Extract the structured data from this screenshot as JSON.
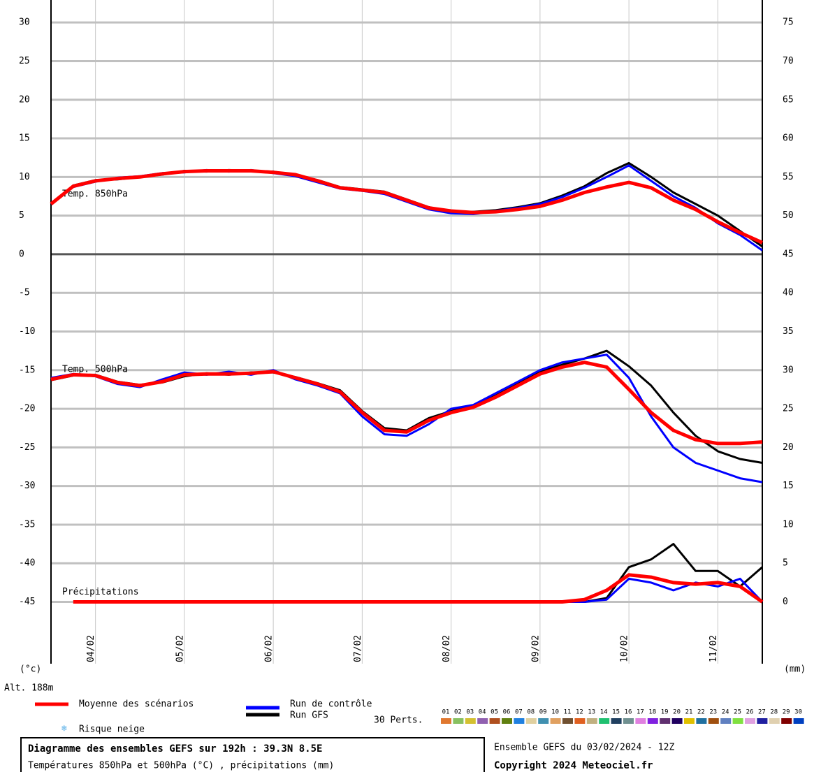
{
  "chart_data": {
    "type": "line",
    "left_unit": "(°c)",
    "right_unit": "(mm)",
    "altitude": "Alt. 188m",
    "xlim": [
      0,
      192
    ],
    "xticks": [
      {
        "value": 12,
        "label": "04/02"
      },
      {
        "value": 36,
        "label": "05/02"
      },
      {
        "value": 60,
        "label": "06/02"
      },
      {
        "value": 84,
        "label": "07/02"
      },
      {
        "value": 108,
        "label": "08/02"
      },
      {
        "value": 132,
        "label": "09/02"
      },
      {
        "value": 156,
        "label": "10/02"
      },
      {
        "value": 180,
        "label": "11/02"
      }
    ],
    "ylim": [
      -53,
      33
    ],
    "yticks": [
      30,
      25,
      20,
      15,
      10,
      5,
      0,
      -5,
      -10,
      -15,
      -20,
      -25,
      -30,
      -35,
      -40,
      -45
    ],
    "y2lim": [
      -8,
      78
    ],
    "y2ticks": [
      75,
      70,
      65,
      60,
      55,
      50,
      45,
      40,
      35,
      30,
      25,
      20,
      15,
      10,
      5,
      0
    ],
    "grid": true,
    "x": [
      0,
      6,
      12,
      18,
      24,
      30,
      36,
      42,
      48,
      54,
      60,
      66,
      72,
      78,
      84,
      90,
      96,
      102,
      108,
      114,
      120,
      126,
      132,
      138,
      144,
      150,
      156,
      162,
      168,
      174,
      180,
      186,
      192
    ],
    "legend": [
      {
        "name": "Moyenne des scénarios",
        "color": "#ff0000"
      },
      {
        "name": "Run de contrôle",
        "color": "#0000ff"
      },
      {
        "name": "Run GFS",
        "color": "#000000"
      }
    ],
    "groups": [
      {
        "label": "Temp. 850hPa",
        "series": [
          {
            "values": [
              6.5,
              8.8,
              9.5,
              9.8,
              10.0,
              10.4,
              10.7,
              10.8,
              10.8,
              10.8,
              10.6,
              10.3,
              9.5,
              8.6,
              8.3,
              8.0,
              7.0,
              6.0,
              5.6,
              5.4,
              5.5,
              5.8,
              6.2,
              7.0,
              8.0,
              8.7,
              9.3,
              8.6,
              7.0,
              5.8,
              4.2,
              2.8,
              1.5
            ]
          },
          {
            "values": [
              6.5,
              8.7,
              9.4,
              9.9,
              10.1,
              10.5,
              10.6,
              10.9,
              10.7,
              10.9,
              10.5,
              10.1,
              9.3,
              8.5,
              8.2,
              7.8,
              6.8,
              5.8,
              5.3,
              5.2,
              5.6,
              6.0,
              6.5,
              7.4,
              8.6,
              10.0,
              11.5,
              9.5,
              7.5,
              6.0,
              4.0,
              2.5,
              0.5
            ]
          },
          {
            "values": [
              6.5,
              8.9,
              9.6,
              9.7,
              10.0,
              10.3,
              10.8,
              10.7,
              10.9,
              10.8,
              10.7,
              10.2,
              9.6,
              8.7,
              8.4,
              8.1,
              7.1,
              6.1,
              5.5,
              5.5,
              5.7,
              6.1,
              6.6,
              7.6,
              8.8,
              10.5,
              11.8,
              10.0,
              8.0,
              6.5,
              5.0,
              3.0,
              1.0
            ]
          }
        ]
      },
      {
        "label": "Temp. 500hPa",
        "series": [
          {
            "values": [
              -16.2,
              -15.6,
              -15.7,
              -16.6,
              -17.0,
              -16.5,
              -15.6,
              -15.5,
              -15.5,
              -15.4,
              -15.2,
              -16.0,
              -16.8,
              -17.8,
              -20.5,
              -22.8,
              -23.0,
              -21.5,
              -20.5,
              -19.8,
              -18.5,
              -17.0,
              -15.5,
              -14.6,
              -14.0,
              -14.6,
              -17.5,
              -20.5,
              -22.8,
              -24.0,
              -24.5,
              -24.5,
              -24.3
            ]
          },
          {
            "values": [
              -16.0,
              -15.5,
              -15.8,
              -16.8,
              -17.2,
              -16.2,
              -15.3,
              -15.6,
              -15.2,
              -15.6,
              -15.0,
              -16.2,
              -17.0,
              -18.0,
              -21.0,
              -23.3,
              -23.5,
              -22.0,
              -20.0,
              -19.5,
              -18.0,
              -16.5,
              -15.0,
              -14.0,
              -13.5,
              -13.0,
              -16.0,
              -21.0,
              -25.0,
              -27.0,
              -28.0,
              -29.0,
              -29.5
            ]
          },
          {
            "values": [
              -16.3,
              -15.7,
              -15.6,
              -16.5,
              -16.9,
              -16.6,
              -15.8,
              -15.4,
              -15.6,
              -15.3,
              -15.3,
              -15.9,
              -16.7,
              -17.6,
              -20.3,
              -22.5,
              -22.8,
              -21.2,
              -20.3,
              -19.6,
              -18.3,
              -16.8,
              -15.2,
              -14.3,
              -13.5,
              -12.5,
              -14.5,
              -17.0,
              -20.5,
              -23.5,
              -25.5,
              -26.5,
              -27.0
            ]
          }
        ]
      },
      {
        "label": "Précipitations",
        "axis": "y2",
        "series": [
          {
            "values": [
              null,
              0,
              0,
              0,
              0,
              0,
              0,
              0,
              0,
              0,
              0,
              0,
              0,
              0,
              0,
              0,
              0,
              0,
              0,
              0,
              0,
              0,
              0,
              0,
              0.3,
              1.5,
              3.5,
              3.2,
              2.5,
              2.3,
              2.5,
              2.0,
              0
            ]
          },
          {
            "values": [
              null,
              null,
              null,
              null,
              null,
              null,
              null,
              null,
              null,
              null,
              null,
              null,
              null,
              null,
              null,
              null,
              0,
              0,
              0,
              0,
              0,
              0,
              0,
              0,
              0,
              0.3,
              3.0,
              2.5,
              1.5,
              2.5,
              2.0,
              3.0,
              0
            ]
          },
          {
            "values": [
              null,
              null,
              null,
              null,
              null,
              null,
              null,
              null,
              null,
              null,
              null,
              null,
              null,
              null,
              null,
              0,
              0,
              0,
              0,
              0,
              0,
              0,
              0,
              0,
              0,
              0.5,
              4.5,
              5.5,
              7.5,
              4.0,
              4.0,
              2.0,
              4.5
            ]
          }
        ]
      }
    ],
    "snow": "Risque neige",
    "perts": {
      "label": "30 Perts.",
      "ids": [
        "01",
        "02",
        "03",
        "04",
        "05",
        "06",
        "07",
        "08",
        "09",
        "10",
        "11",
        "12",
        "13",
        "14",
        "15",
        "16",
        "17",
        "18",
        "19",
        "20",
        "21",
        "22",
        "23",
        "24",
        "25",
        "26",
        "27",
        "28",
        "29",
        "30"
      ],
      "colors": [
        "#e07830",
        "#88c060",
        "#d4c030",
        "#9060b0",
        "#b05020",
        "#608010",
        "#2080e0",
        "#e0d0a0",
        "#4090b0",
        "#e0a060",
        "#705030",
        "#e06020",
        "#c0b080",
        "#20c070",
        "#204060",
        "#709090",
        "#e080e0",
        "#8020e0",
        "#603070",
        "#200060",
        "#e0c000",
        "#2070a0",
        "#a05010",
        "#6080c0",
        "#80e040",
        "#e0a0e0",
        "#2020a0",
        "#e0d0b0",
        "#800000",
        "#0040c0"
      ]
    },
    "title": "Diagramme des ensembles GEFS sur 192h : 39.3N 8.5E",
    "subtitle": "Températures 850hPa et 500hPa (°C) , précipitations (mm)",
    "run_info": "Ensemble GEFS du 03/02/2024 - 12Z",
    "copyright": "Copyright 2024 Meteociel.fr"
  }
}
